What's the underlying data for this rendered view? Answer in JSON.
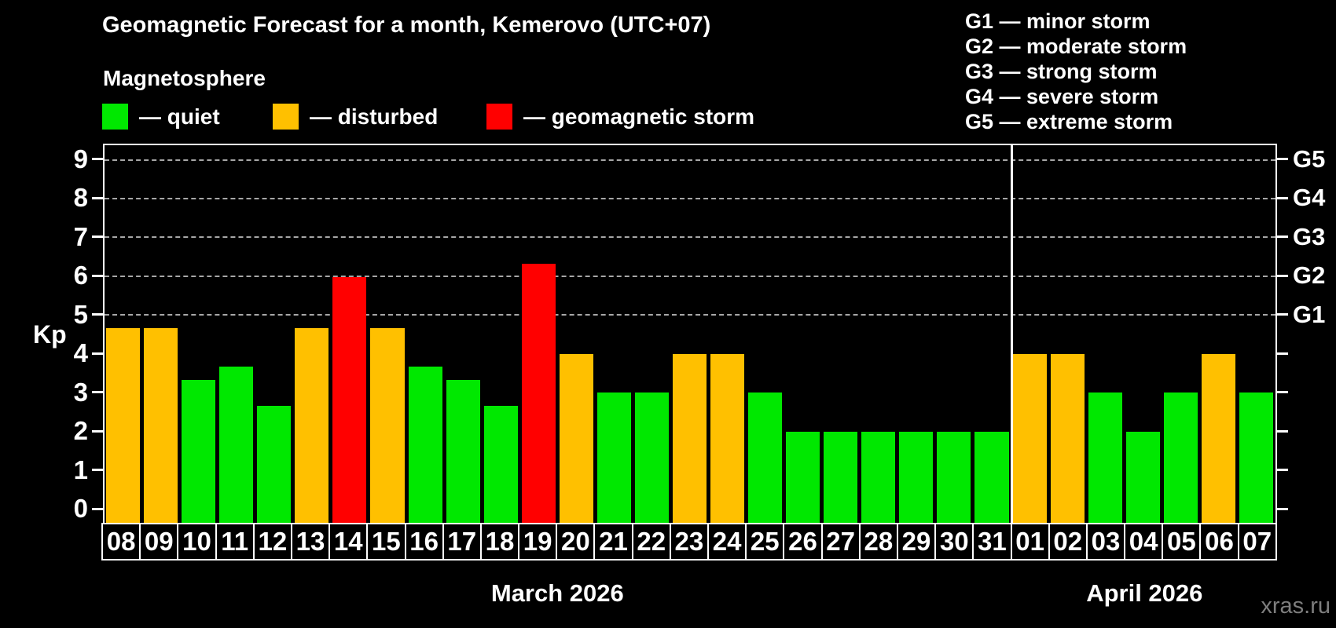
{
  "title": "Geomagnetic Forecast for a month, Kemerovo (UTC+07)",
  "subtitle": "Magnetosphere",
  "legend": {
    "items": [
      {
        "name": "quiet",
        "label": "— quiet",
        "color": "#00E800",
        "x": 130
      },
      {
        "name": "disturbed",
        "label": "— disturbed",
        "color": "#FFC000",
        "x": 347
      },
      {
        "name": "storm",
        "label": "— geomagnetic storm",
        "color": "#FF0000",
        "x": 619
      }
    ]
  },
  "g_legend": {
    "lines": [
      "G1 — minor storm",
      "G2 — moderate storm",
      "G3 — strong storm",
      "G4 — severe storm",
      "G5 — extreme storm"
    ]
  },
  "watermark": "xras.ru",
  "colors": {
    "quiet": "#00E800",
    "disturbed": "#FFC000",
    "storm": "#FF0000",
    "axis": "#FFFFFF",
    "gridline": "#A7A7A7",
    "background": "#000000",
    "watermark": "#7E7E7E"
  },
  "chart_data": {
    "type": "bar",
    "ylabel": "Kp",
    "ylim": [
      -0.4,
      9.4
    ],
    "y_ticks": [
      0,
      1,
      2,
      3,
      4,
      5,
      6,
      7,
      8,
      9
    ],
    "gridlines": [
      5,
      6,
      7,
      8,
      9
    ],
    "right_axis_labels": {
      "5": "G1",
      "6": "G2",
      "7": "G3",
      "8": "G4",
      "9": "G5"
    },
    "legend_position": "top",
    "grid": "dashed horizontal at storm levels only",
    "months": [
      {
        "label": "March 2026",
        "start_index": 0,
        "count": 24
      },
      {
        "label": "April 2026",
        "start_index": 24,
        "count": 7
      }
    ],
    "separator_after_index": 23,
    "days": [
      {
        "date": "08",
        "kp": 4.67,
        "status": "disturbed"
      },
      {
        "date": "09",
        "kp": 4.67,
        "status": "disturbed"
      },
      {
        "date": "10",
        "kp": 3.33,
        "status": "quiet"
      },
      {
        "date": "11",
        "kp": 3.67,
        "status": "quiet"
      },
      {
        "date": "12",
        "kp": 2.67,
        "status": "quiet"
      },
      {
        "date": "13",
        "kp": 4.67,
        "status": "disturbed"
      },
      {
        "date": "14",
        "kp": 6.0,
        "status": "storm"
      },
      {
        "date": "15",
        "kp": 4.67,
        "status": "disturbed"
      },
      {
        "date": "16",
        "kp": 3.67,
        "status": "quiet"
      },
      {
        "date": "17",
        "kp": 3.33,
        "status": "quiet"
      },
      {
        "date": "18",
        "kp": 2.67,
        "status": "quiet"
      },
      {
        "date": "19",
        "kp": 6.33,
        "status": "storm"
      },
      {
        "date": "20",
        "kp": 4.0,
        "status": "disturbed"
      },
      {
        "date": "21",
        "kp": 3.0,
        "status": "quiet"
      },
      {
        "date": "22",
        "kp": 3.0,
        "status": "quiet"
      },
      {
        "date": "23",
        "kp": 4.0,
        "status": "disturbed"
      },
      {
        "date": "24",
        "kp": 4.0,
        "status": "disturbed"
      },
      {
        "date": "25",
        "kp": 3.0,
        "status": "quiet"
      },
      {
        "date": "26",
        "kp": 2.0,
        "status": "quiet"
      },
      {
        "date": "27",
        "kp": 2.0,
        "status": "quiet"
      },
      {
        "date": "28",
        "kp": 2.0,
        "status": "quiet"
      },
      {
        "date": "29",
        "kp": 2.0,
        "status": "quiet"
      },
      {
        "date": "30",
        "kp": 2.0,
        "status": "quiet"
      },
      {
        "date": "31",
        "kp": 2.0,
        "status": "quiet"
      },
      {
        "date": "01",
        "kp": 4.0,
        "status": "disturbed"
      },
      {
        "date": "02",
        "kp": 4.0,
        "status": "disturbed"
      },
      {
        "date": "03",
        "kp": 3.0,
        "status": "quiet"
      },
      {
        "date": "04",
        "kp": 2.0,
        "status": "quiet"
      },
      {
        "date": "05",
        "kp": 3.0,
        "status": "quiet"
      },
      {
        "date": "06",
        "kp": 4.0,
        "status": "disturbed"
      },
      {
        "date": "07",
        "kp": 3.0,
        "status": "quiet"
      }
    ]
  }
}
